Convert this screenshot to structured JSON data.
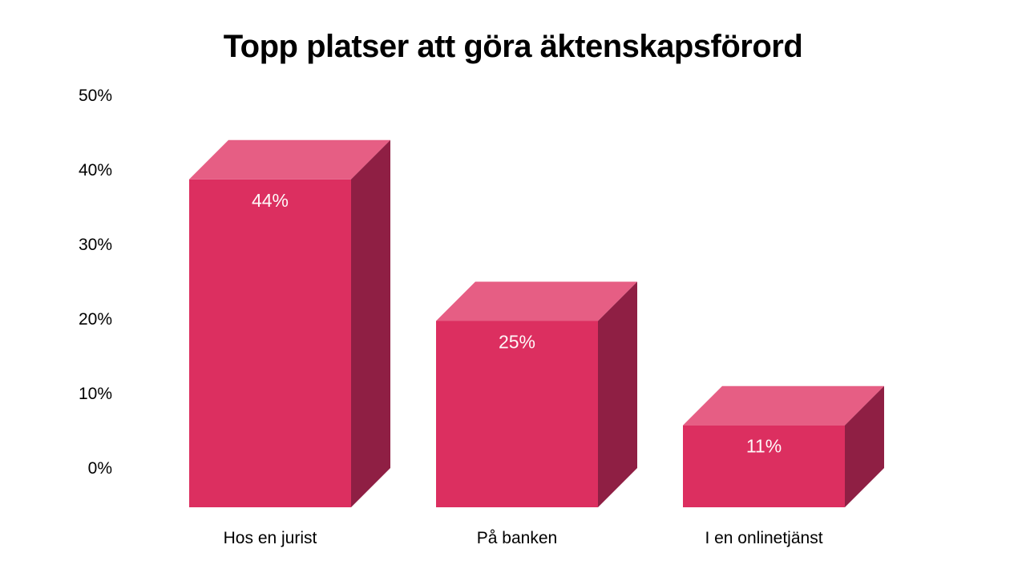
{
  "chart_data": {
    "type": "bar",
    "variant": "3d-column",
    "title": "Topp platser att göra äktenskapsförord",
    "categories": [
      "Hos en jurist",
      "På banken",
      "I en onlinetjänst"
    ],
    "values": [
      44,
      25,
      11
    ],
    "value_labels": [
      "44%",
      "25%",
      "11%"
    ],
    "xlabel": "",
    "ylabel": "",
    "ylim": [
      0,
      50
    ],
    "y_tick_step": 10,
    "y_tick_labels": [
      "0%",
      "10%",
      "20%",
      "30%",
      "40%",
      "50%"
    ],
    "grid": false,
    "legend": false,
    "background": "#ffffff",
    "colors": {
      "bar_front": "#DC2F60",
      "bar_top": "#E65E84",
      "bar_side": "#8F1F44",
      "value_label": "#FEF9F9",
      "axis_text": "#000000",
      "title_text": "#000000"
    }
  }
}
